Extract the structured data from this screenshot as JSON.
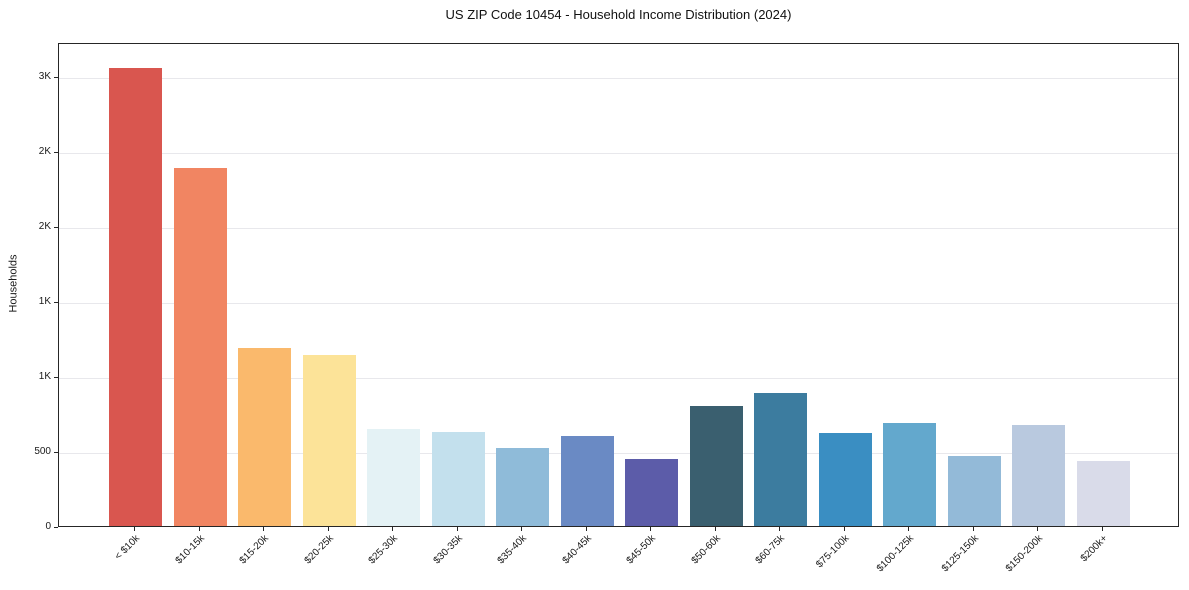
{
  "page": {
    "title": "US ZIP Code 10454 - Household Income Distribution (2024)"
  },
  "chart_data": {
    "type": "bar",
    "title": "US ZIP Code 10454 - Household Income Distribution (2024)",
    "xlabel": "",
    "ylabel": "Households",
    "categories": [
      "< $10k",
      "$10-15k",
      "$15-20k",
      "$20-25k",
      "$25-30k",
      "$30-35k",
      "$35-40k",
      "$40-45k",
      "$45-50k",
      "$50-60k",
      "$60-75k",
      "$75-100k",
      "$100-125k",
      "$125-150k",
      "$150-200k",
      "$200k+"
    ],
    "values": [
      3060,
      2390,
      1190,
      1140,
      650,
      630,
      520,
      600,
      450,
      800,
      885,
      620,
      685,
      470,
      675,
      435
    ],
    "bar_colors": [
      "#d9564f",
      "#f18562",
      "#fab96c",
      "#fce398",
      "#e4f2f5",
      "#c3e0ed",
      "#8fbbd9",
      "#6a8ac4",
      "#5c5ca9",
      "#3a5f6f",
      "#3c7c9f",
      "#3a8ec2",
      "#63a8cd",
      "#93bad8",
      "#b9c9df",
      "#d9dbe9"
    ],
    "ylim": [
      0,
      3230
    ],
    "yticks": {
      "values": [
        0,
        500,
        1000,
        1500,
        2000,
        2500,
        3000
      ],
      "labels": [
        "0",
        "500",
        "1K",
        "1K",
        "2K",
        "2K",
        "3K"
      ]
    },
    "grid": "horizontal",
    "legend": "none"
  },
  "colors": {
    "background": "#ffffff",
    "grid": "#e8e8ec",
    "spine": "#262626",
    "text": "#1a1a1a"
  }
}
